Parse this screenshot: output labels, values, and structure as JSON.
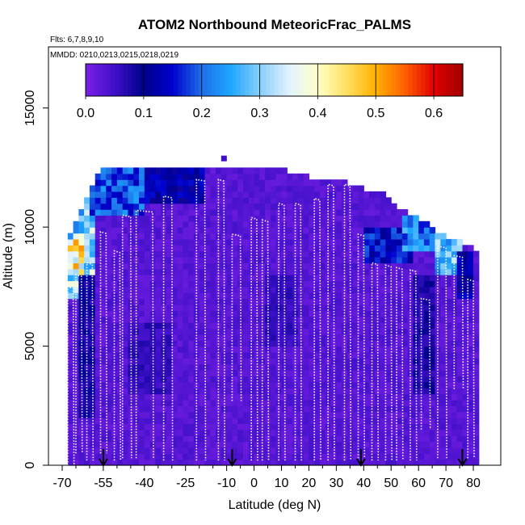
{
  "chart_data": {
    "type": "heatmap",
    "title": "ATOM2 Northbound MeteoricFrac_PALMS",
    "subtitle_flights": "Flts: 6,7,8,9,10",
    "subtitle_dates": "MMDD: 0210,0213,0215,0218,0219",
    "xlabel": "Latitude (deg N)",
    "ylabel": "Altitude (m)",
    "xlim": [
      -70,
      85
    ],
    "ylim": [
      0,
      17500
    ],
    "x_ticks": [
      -70,
      -55,
      -40,
      -25,
      -10,
      0,
      10,
      20,
      30,
      40,
      50,
      60,
      70,
      80
    ],
    "x_minor_ticks": [
      -65,
      -60,
      -50,
      -45,
      -35,
      -30,
      -20,
      -15,
      -5,
      5,
      15,
      25,
      35,
      45,
      55,
      65,
      75
    ],
    "y_ticks": [
      0,
      5000,
      10000,
      15000
    ],
    "colorbar": {
      "range": [
        0,
        0.65
      ],
      "ticks": [
        "0.0",
        "0.1",
        "0.2",
        "0.3",
        "0.4",
        "0.5",
        "0.6"
      ],
      "tick_values": [
        0,
        0.1,
        0.2,
        0.3,
        0.4,
        0.5,
        0.6
      ],
      "colors": [
        "#7a1fe6",
        "#3f10c8",
        "#00008b",
        "#0000cd",
        "#1e6fe8",
        "#1ea6ff",
        "#87cefa",
        "#e0f2ff",
        "#ffffc8",
        "#ffe060",
        "#ffb000",
        "#ff6000",
        "#e00000",
        "#a00000"
      ]
    },
    "background_value": 0.03,
    "data_top_profile": [
      {
        "lat": -68,
        "alt": 9500
      },
      {
        "lat": -64,
        "alt": 10300
      },
      {
        "lat": -60,
        "alt": 11500
      },
      {
        "lat": -56,
        "alt": 12500
      },
      {
        "lat": -20,
        "alt": 12500
      },
      {
        "lat": -5,
        "alt": 12300
      },
      {
        "lat": 10,
        "alt": 12300
      },
      {
        "lat": 20,
        "alt": 12000
      },
      {
        "lat": 30,
        "alt": 12000
      },
      {
        "lat": 40,
        "alt": 11500
      },
      {
        "lat": 45,
        "alt": 11500
      },
      {
        "lat": 50,
        "alt": 11000
      },
      {
        "lat": 56,
        "alt": 10500
      },
      {
        "lat": 62,
        "alt": 10200
      },
      {
        "lat": 66,
        "alt": 9800
      },
      {
        "lat": 70,
        "alt": 9500
      },
      {
        "lat": 75,
        "alt": 9300
      },
      {
        "lat": 80,
        "alt": 9000
      }
    ],
    "high_value_regions": [
      {
        "lat_range": [
          -68,
          -58
        ],
        "alt_range": [
          7000,
          12300
        ],
        "value": 0.3
      },
      {
        "lat_range": [
          -67,
          -63
        ],
        "alt_range": [
          8000,
          9500
        ],
        "value": 0.42
      },
      {
        "lat_range": [
          -60,
          -40
        ],
        "alt_range": [
          10500,
          12500
        ],
        "value": 0.19
      },
      {
        "lat_range": [
          -40,
          -18
        ],
        "alt_range": [
          11000,
          12500
        ],
        "value": 0.12
      },
      {
        "lat_range": [
          -63,
          -58
        ],
        "alt_range": [
          2000,
          8000
        ],
        "value": 0.09
      },
      {
        "lat_range": [
          40,
          58
        ],
        "alt_range": [
          8500,
          10000
        ],
        "value": 0.15
      },
      {
        "lat_range": [
          55,
          66
        ],
        "alt_range": [
          9000,
          10500
        ],
        "value": 0.22
      },
      {
        "lat_range": [
          66,
          76
        ],
        "alt_range": [
          8000,
          10000
        ],
        "value": 0.27
      },
      {
        "lat_range": [
          74,
          80
        ],
        "alt_range": [
          7000,
          9000
        ],
        "value": 0.12
      },
      {
        "lat_range": [
          58,
          66
        ],
        "alt_range": [
          3000,
          8000
        ],
        "value": 0.08
      },
      {
        "lat_range": [
          -45,
          -30
        ],
        "alt_range": [
          3000,
          6000
        ],
        "value": 0.06
      },
      {
        "lat_range": [
          5,
          15
        ],
        "alt_range": [
          5000,
          8000
        ],
        "value": 0.06
      }
    ],
    "flight_profiles": [
      {
        "lat_range": [
          -68,
          -66
        ],
        "alt_range": [
          0,
          7500
        ]
      },
      {
        "lat_range": [
          -65,
          -63
        ],
        "alt_range": [
          500,
          8000
        ]
      },
      {
        "lat_range": [
          -61,
          -59
        ],
        "alt_range": [
          200,
          8500
        ]
      },
      {
        "lat_range": [
          -56,
          -54
        ],
        "alt_range": [
          500,
          9800
        ]
      },
      {
        "lat_range": [
          -51,
          -49
        ],
        "alt_range": [
          200,
          9000
        ]
      },
      {
        "lat_range": [
          -48,
          -45
        ],
        "alt_range": [
          300,
          10500
        ]
      },
      {
        "lat_range": [
          -43,
          -37
        ],
        "alt_range": [
          300,
          10700
        ]
      },
      {
        "lat_range": [
          -33,
          -30
        ],
        "alt_range": [
          200,
          11300
        ]
      },
      {
        "lat_range": [
          -21,
          -18
        ],
        "alt_range": [
          200,
          12000
        ]
      },
      {
        "lat_range": [
          -13,
          -11
        ],
        "alt_range": [
          200,
          12000
        ]
      },
      {
        "lat_range": [
          -8,
          -5
        ],
        "alt_range": [
          2700,
          9700
        ]
      },
      {
        "lat_range": [
          -1,
          1
        ],
        "alt_range": [
          200,
          10400
        ]
      },
      {
        "lat_range": [
          3,
          5
        ],
        "alt_range": [
          200,
          10300
        ]
      },
      {
        "lat_range": [
          9,
          11
        ],
        "alt_range": [
          200,
          11000
        ]
      },
      {
        "lat_range": [
          15,
          17
        ],
        "alt_range": [
          200,
          11000
        ]
      },
      {
        "lat_range": [
          22,
          24
        ],
        "alt_range": [
          200,
          11200
        ]
      },
      {
        "lat_range": [
          27,
          29
        ],
        "alt_range": [
          200,
          11800
        ]
      },
      {
        "lat_range": [
          33,
          35
        ],
        "alt_range": [
          200,
          11800
        ]
      },
      {
        "lat_range": [
          38,
          40
        ],
        "alt_range": [
          300,
          9700
        ]
      },
      {
        "lat_range": [
          43,
          45
        ],
        "alt_range": [
          200,
          8500
        ]
      },
      {
        "lat_range": [
          48,
          50
        ],
        "alt_range": [
          200,
          8400
        ]
      },
      {
        "lat_range": [
          52,
          54
        ],
        "alt_range": [
          200,
          8300
        ]
      },
      {
        "lat_range": [
          57,
          59
        ],
        "alt_range": [
          200,
          8200
        ]
      },
      {
        "lat_range": [
          61,
          64
        ],
        "alt_range": [
          1500,
          7000
        ]
      },
      {
        "lat_range": [
          67,
          70
        ],
        "alt_range": [
          300,
          9200
        ]
      },
      {
        "lat_range": [
          73,
          76
        ],
        "alt_range": [
          3200,
          8800
        ]
      },
      {
        "lat_range": [
          78,
          80
        ],
        "alt_range": [
          300,
          7800
        ]
      }
    ],
    "arrow_latitudes": [
      -55,
      -8,
      39,
      76
    ]
  }
}
